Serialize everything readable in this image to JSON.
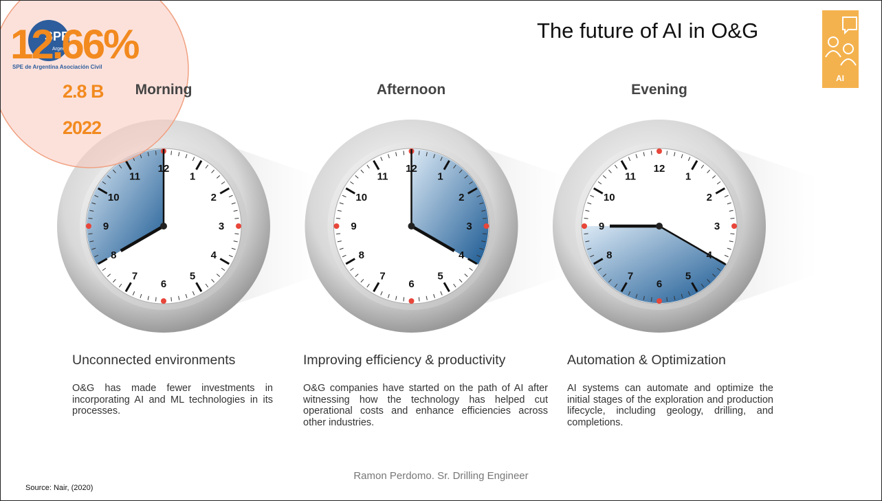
{
  "overlay": {
    "percent": "12.66%",
    "amount": "2.8 B",
    "year": "2022"
  },
  "logo": {
    "mark": "SPE",
    "sub": "Argentina",
    "caption": "SPE de Argentina Asociación Civil"
  },
  "title": "The future of AI in O&G",
  "icon_label": "AI",
  "dial": [
    "12",
    "1",
    "2",
    "3",
    "4",
    "5",
    "6",
    "7",
    "8",
    "9",
    "10",
    "11"
  ],
  "columns": [
    {
      "period": "Morning",
      "heading": "Unconnected environments",
      "text": "O&G has made fewer investments in incorporating AI and ML technologies in its processes."
    },
    {
      "period": "Afternoon",
      "heading": "Improving efficiency & productivity",
      "text": "O&G companies have started on the path of AI after witnessing how the technology has helped cut operational costs and enhance efficiencies across other industries."
    },
    {
      "period": "Evening",
      "heading": "Automation & Optimization",
      "text": "AI systems can automate and optimize the initial stages of the exploration and production lifecycle, including geology, drilling, and completions."
    }
  ],
  "author": "Ramon Perdomo. Sr. Drilling Engineer",
  "source": "Source: Nair, (2020)"
}
